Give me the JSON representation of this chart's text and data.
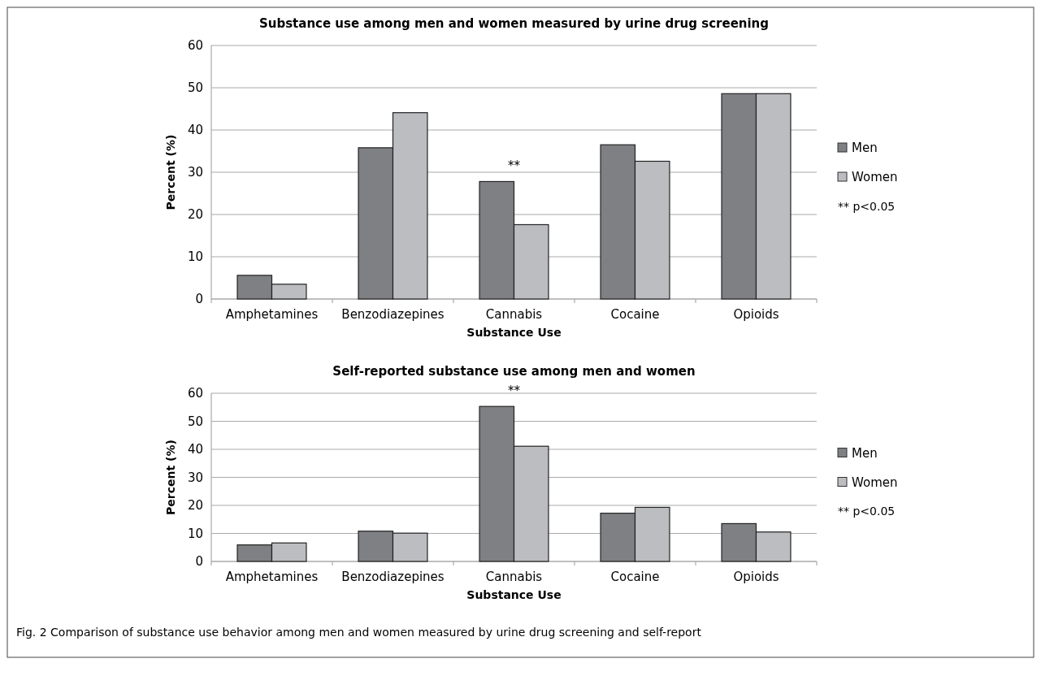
{
  "chart_data": [
    {
      "type": "bar",
      "title": "Substance use among men and women measured by urine drug screening",
      "xlabel": "Substance Use",
      "ylabel": "Percent (%)",
      "categories": [
        "Amphetamines",
        "Benzodiazepines",
        "Cannabis",
        "Cocaine",
        "Opioids"
      ],
      "series": [
        {
          "name": "Men",
          "color": "#7f8084",
          "values": [
            5.6,
            35.8,
            27.8,
            36.5,
            48.6
          ]
        },
        {
          "name": "Women",
          "color": "#bcbdc1",
          "values": [
            3.5,
            44.1,
            17.6,
            32.6,
            48.6
          ]
        }
      ],
      "ylim": [
        0,
        60
      ],
      "yticks": [
        0,
        10,
        20,
        30,
        40,
        50,
        60
      ],
      "grid": "y",
      "legend": "right",
      "annotations": [
        "**",
        "** p<0.05"
      ]
    },
    {
      "type": "bar",
      "title": "Self-reported substance use among men and women",
      "xlabel": "Substance Use",
      "ylabel": "Percent (%)",
      "categories": [
        "Amphetamines",
        "Benzodiazepines",
        "Cannabis",
        "Cocaine",
        "Opioids"
      ],
      "series": [
        {
          "name": "Men",
          "color": "#7f8084",
          "values": [
            5.9,
            10.8,
            55.3,
            17.2,
            13.5
          ]
        },
        {
          "name": "Women",
          "color": "#bcbdc1",
          "values": [
            6.6,
            10.1,
            41.1,
            19.3,
            10.5
          ]
        }
      ],
      "ylim": [
        0,
        60
      ],
      "yticks": [
        0,
        10,
        20,
        30,
        40,
        50,
        60
      ],
      "grid": "y",
      "legend": "right",
      "annotations": [
        "**",
        "** p<0.05",
        "Fig. 2 Comparison of substance use behavior among men and women measured by urine drug screening and self-report"
      ]
    }
  ]
}
